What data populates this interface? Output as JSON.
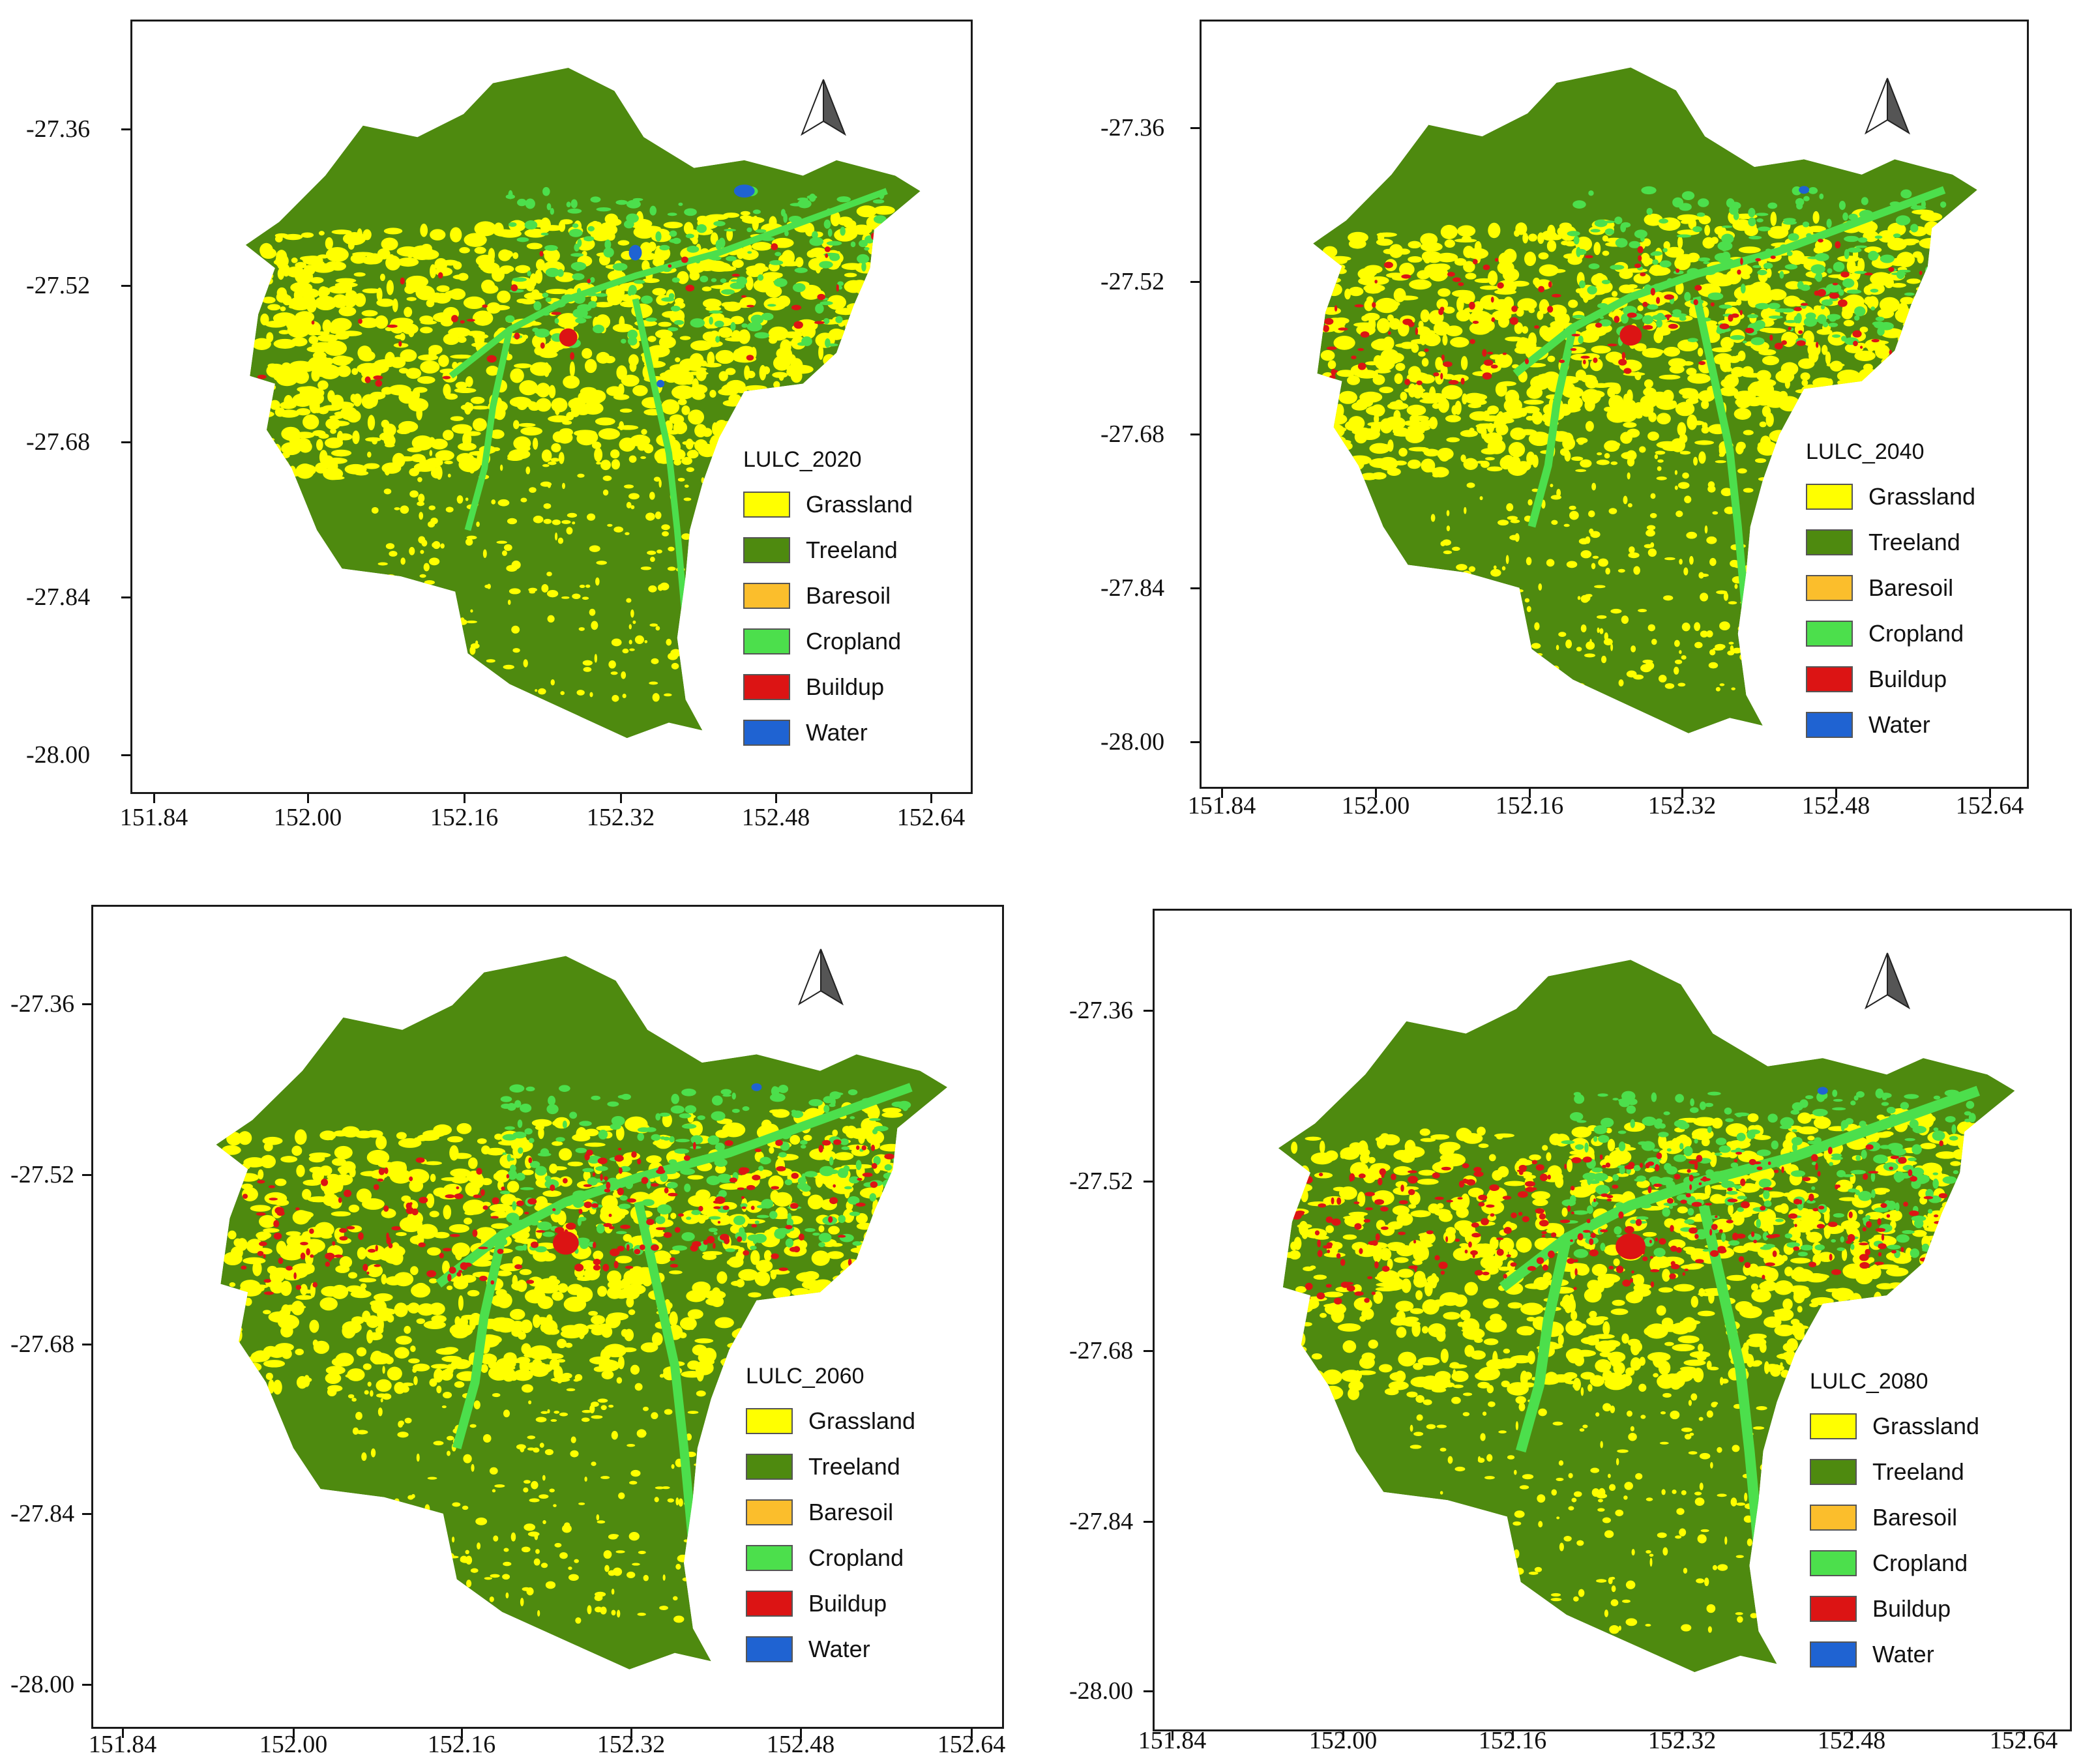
{
  "legend_classes": [
    {
      "label": "Grassland",
      "color": "#ffff00"
    },
    {
      "label": "Treeland",
      "color": "#4e8a0f"
    },
    {
      "label": "Baresoil",
      "color": "#fbbe2c"
    },
    {
      "label": "Cropland",
      "color": "#4cdf4c"
    },
    {
      "label": "Buildup",
      "color": "#dc1414"
    },
    {
      "label": "Water",
      "color": "#1f63d2"
    }
  ],
  "y_ticks": [
    "-27.36",
    "-27.52",
    "-27.68",
    "-27.84",
    "-28.00"
  ],
  "x_ticks": [
    "151.84",
    "152.00",
    "152.16",
    "152.32",
    "152.48",
    "152.64"
  ],
  "panels": [
    {
      "legend_title": "LULC_2020"
    },
    {
      "legend_title": "LULC_2040"
    },
    {
      "legend_title": "LULC_2060"
    },
    {
      "legend_title": "LULC_2080"
    }
  ],
  "north_arrow_icon": "north-arrow-icon"
}
